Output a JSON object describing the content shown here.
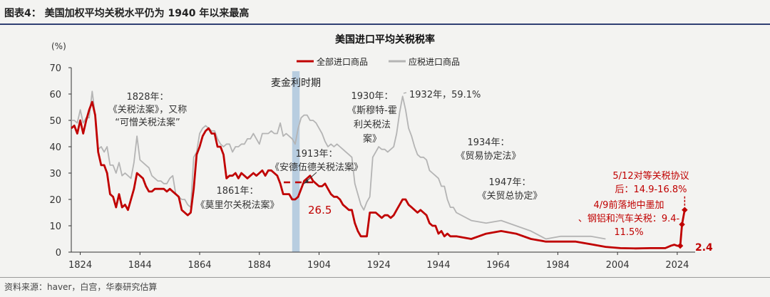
{
  "figure_title": "图表4：  美国加权平均关税水平仍为 1940 年以来最高",
  "source": "资料来源：haver，白宫，华泰研究估算",
  "colors": {
    "all_imports": "#c00000",
    "dutiable": "#b4b4b4",
    "shade": "#b8cde0",
    "header_rule": "#2f3f73",
    "annotation_red": "#c00000"
  },
  "chart_data": {
    "type": "line",
    "title": "美国进口平均关税税率",
    "ylabel": "(%)",
    "xlabel": "",
    "xlim": [
      1821,
      2030
    ],
    "ylim": [
      0,
      70
    ],
    "x_ticks": [
      1824,
      1844,
      1864,
      1884,
      1904,
      1924,
      1944,
      1964,
      1984,
      2004,
      2024
    ],
    "y_ticks": [
      0,
      10,
      20,
      30,
      40,
      50,
      60,
      70
    ],
    "grid": false,
    "legend_position": "top-right",
    "shaded_period": {
      "label": "麦金利时期",
      "x_range": [
        1895,
        1897.5
      ]
    },
    "series": [
      {
        "name": "全部进口商品",
        "color": "#c00000",
        "x": [
          1821,
          1822,
          1823,
          1824,
          1825,
          1826,
          1827,
          1828,
          1829,
          1830,
          1831,
          1832,
          1833,
          1834,
          1835,
          1836,
          1837,
          1838,
          1839,
          1840,
          1841,
          1842,
          1843,
          1844,
          1845,
          1846,
          1847,
          1848,
          1849,
          1850,
          1851,
          1852,
          1853,
          1854,
          1855,
          1856,
          1857,
          1858,
          1859,
          1860,
          1861,
          1862,
          1863,
          1864,
          1865,
          1866,
          1867,
          1868,
          1869,
          1870,
          1871,
          1872,
          1873,
          1874,
          1875,
          1876,
          1877,
          1878,
          1879,
          1880,
          1881,
          1882,
          1883,
          1884,
          1885,
          1886,
          1887,
          1888,
          1889,
          1890,
          1891,
          1892,
          1893,
          1894,
          1895,
          1896,
          1897,
          1898,
          1899,
          1900,
          1901,
          1902,
          1903,
          1904,
          1905,
          1906,
          1907,
          1908,
          1909,
          1910,
          1911,
          1912,
          1913,
          1914,
          1915,
          1916,
          1917,
          1918,
          1919,
          1920,
          1921,
          1922,
          1923,
          1924,
          1925,
          1926,
          1927,
          1928,
          1929,
          1930,
          1931,
          1932,
          1933,
          1934,
          1935,
          1936,
          1937,
          1938,
          1939,
          1940,
          1941,
          1942,
          1943,
          1944,
          1945,
          1946,
          1947,
          1948,
          1949,
          1950,
          1955,
          1960,
          1965,
          1970,
          1975,
          1980,
          1985,
          1990,
          1995,
          2000,
          2005,
          2010,
          2015,
          2020,
          2022,
          2023,
          2024,
          2025
        ],
        "y": [
          47,
          48,
          45,
          50,
          45,
          50,
          54,
          57,
          52,
          38,
          33,
          33,
          30,
          22,
          21,
          17,
          22,
          17,
          18,
          16,
          20,
          24,
          30,
          29,
          28,
          25,
          23,
          23,
          24,
          24,
          24,
          24,
          23,
          24,
          23,
          22,
          21,
          16,
          15,
          14,
          15,
          24,
          37,
          40,
          44,
          46,
          47,
          45,
          45,
          40,
          40,
          37,
          28,
          29,
          29,
          30,
          28,
          30,
          29,
          28,
          29,
          30,
          29,
          30,
          31,
          29,
          31,
          31,
          30,
          29,
          26,
          22,
          22,
          22,
          20,
          20,
          21,
          24,
          27,
          28,
          29,
          27,
          26,
          25,
          25,
          26,
          24,
          22,
          21,
          21,
          20,
          18,
          17,
          16,
          16,
          11,
          8,
          6,
          6,
          6,
          15,
          15,
          15,
          14,
          13,
          14,
          14,
          13,
          14,
          16,
          18,
          20,
          20,
          18,
          17,
          16,
          15,
          16,
          15,
          14,
          11,
          10,
          10,
          7,
          8,
          6,
          7,
          6,
          6,
          6,
          5,
          7,
          8,
          7,
          5,
          4,
          4,
          4,
          3,
          2,
          1.5,
          1.4,
          1.5,
          1.5,
          2.5,
          2.8,
          2.4,
          2.4
        ]
      },
      {
        "name": "应税进口商品",
        "color": "#b4b4b4",
        "x": [
          1821,
          1822,
          1823,
          1824,
          1825,
          1826,
          1827,
          1828,
          1829,
          1830,
          1831,
          1832,
          1833,
          1834,
          1835,
          1836,
          1837,
          1838,
          1839,
          1840,
          1841,
          1842,
          1843,
          1844,
          1845,
          1846,
          1847,
          1848,
          1849,
          1850,
          1851,
          1852,
          1853,
          1854,
          1855,
          1856,
          1857,
          1858,
          1859,
          1860,
          1861,
          1862,
          1863,
          1864,
          1865,
          1866,
          1867,
          1868,
          1869,
          1870,
          1871,
          1872,
          1873,
          1874,
          1875,
          1876,
          1877,
          1878,
          1879,
          1880,
          1881,
          1882,
          1883,
          1884,
          1885,
          1886,
          1887,
          1888,
          1889,
          1890,
          1891,
          1892,
          1893,
          1894,
          1895,
          1896,
          1897,
          1898,
          1899,
          1900,
          1901,
          1902,
          1903,
          1904,
          1905,
          1906,
          1907,
          1908,
          1909,
          1910,
          1911,
          1912,
          1913,
          1914,
          1915,
          1916,
          1917,
          1918,
          1919,
          1920,
          1921,
          1922,
          1923,
          1924,
          1925,
          1926,
          1927,
          1928,
          1929,
          1930,
          1931,
          1932,
          1933,
          1934,
          1935,
          1936,
          1937,
          1938,
          1939,
          1940,
          1941,
          1942,
          1943,
          1944,
          1945,
          1946,
          1947,
          1948,
          1949,
          1950,
          1955,
          1960,
          1965,
          1970,
          1975,
          1980,
          1985,
          1990,
          1995,
          2000
        ],
        "y": [
          50,
          50,
          49,
          54,
          49,
          51,
          51,
          61,
          52,
          39,
          40,
          38,
          40,
          33,
          33,
          30,
          34,
          29,
          30,
          29,
          28,
          34,
          44,
          35,
          34,
          33,
          32,
          29,
          28,
          27,
          27,
          26,
          26,
          28,
          29,
          22,
          21,
          20,
          20,
          18,
          17,
          36,
          38,
          45,
          47,
          48,
          47,
          46,
          46,
          43,
          41,
          40,
          41,
          41,
          38,
          40,
          40,
          41,
          41,
          43,
          43,
          45,
          43,
          41,
          45,
          45,
          45,
          46,
          45,
          45,
          49,
          44,
          45,
          44,
          43,
          41,
          47,
          51,
          52,
          52,
          50,
          50,
          49,
          47,
          45,
          42,
          40,
          41,
          40,
          41,
          40,
          39,
          38,
          37,
          36,
          26,
          22,
          18,
          16,
          19,
          21,
          36,
          38,
          40,
          39,
          39,
          38,
          39,
          40,
          45,
          53,
          59.1,
          54,
          47,
          44,
          40,
          37,
          36,
          36,
          35,
          31,
          30,
          29,
          28,
          25,
          25,
          20,
          17,
          17,
          15,
          12,
          11,
          12,
          10,
          8,
          5,
          6,
          6,
          6,
          5
        ]
      }
    ],
    "annotations": [
      {
        "lines": [
          "1828年：",
          "《关税法案》，又称",
          "“可憎关税法案”"
        ]
      },
      {
        "lines": [
          "1861年：",
          "《莫里尔关税法案》"
        ]
      },
      {
        "lines": [
          "1913年：",
          "《安德伍德关税法案》"
        ]
      },
      {
        "lines": [
          "1930年：",
          "《斯穆特-霍",
          "利关税法",
          "案》"
        ]
      },
      {
        "lines": [
          "1932年，59.1%"
        ]
      },
      {
        "lines": [
          "1934年：",
          "《贸易协定法》"
        ]
      },
      {
        "lines": [
          "1947年：",
          "《关贸总协定》"
        ]
      },
      {
        "lines": [
          "5/12对等关税协议",
          "后：14.9-16.8%"
        ]
      },
      {
        "lines": [
          "4/9前落地中墨加",
          "、钢铝和汽车关税：9.4-",
          "11.5%"
        ]
      },
      {
        "lines": [
          "26.5"
        ]
      },
      {
        "lines": [
          "2.4"
        ]
      }
    ],
    "extension": {
      "x": [
        2025,
        2025.6,
        2026.5
      ],
      "y": [
        2.4,
        10.5,
        16
      ]
    },
    "reference_value": {
      "x": 1896,
      "y": 26.5
    }
  }
}
